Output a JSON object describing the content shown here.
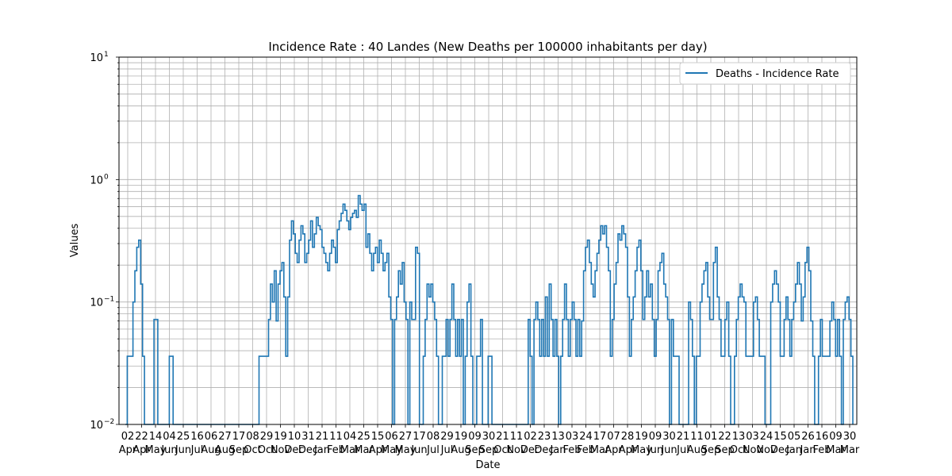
{
  "chart_data": {
    "type": "line",
    "title": "Incidence Rate : 40 Landes (New Deaths per 100000 inhabitants per day)",
    "xlabel": "Date",
    "ylabel": "Values",
    "yscale": "log",
    "ylim": [
      0.01,
      10
    ],
    "y_major_ticks": [
      {
        "value": 0.01,
        "label": "10",
        "exp": "−2"
      },
      {
        "value": 0.1,
        "label": "10",
        "exp": "−1"
      },
      {
        "value": 1,
        "label": "10",
        "exp": "0"
      },
      {
        "value": 10,
        "label": "10",
        "exp": "1"
      }
    ],
    "grid": true,
    "legend": {
      "position": "top-right",
      "entries": [
        "Deaths - Incidence Rate"
      ]
    },
    "line_color": "#1f77b4",
    "x_tick_labels": [
      [
        "02",
        "Apr"
      ],
      [
        "22",
        "Apr"
      ],
      [
        "14",
        "May"
      ],
      [
        "04",
        "Jun"
      ],
      [
        "25",
        "Jun"
      ],
      [
        "16",
        "Jul"
      ],
      [
        "06",
        "Aug"
      ],
      [
        "27",
        "Aug"
      ],
      [
        "17",
        "Sep"
      ],
      [
        "08",
        "Oct"
      ],
      [
        "29",
        "Oct"
      ],
      [
        "19",
        "Nov"
      ],
      [
        "10",
        "Dec"
      ],
      [
        "31",
        "Dec"
      ],
      [
        "21",
        "Jan"
      ],
      [
        "11",
        "Feb"
      ],
      [
        "04",
        "Mar"
      ],
      [
        "25",
        "Mar"
      ],
      [
        "15",
        "Apr"
      ],
      [
        "06",
        "May"
      ],
      [
        "27",
        "May"
      ],
      [
        "17",
        "Jun"
      ],
      [
        "08",
        "Jul"
      ],
      [
        "29",
        "Jul"
      ],
      [
        "19",
        "Aug"
      ],
      [
        "09",
        "Sep"
      ],
      [
        "30",
        "Sep"
      ],
      [
        "21",
        "Oct"
      ],
      [
        "11",
        "Nov"
      ],
      [
        "02",
        "Dec"
      ],
      [
        "23",
        "Dec"
      ],
      [
        "13",
        "Jan"
      ],
      [
        "03",
        "Feb"
      ],
      [
        "24",
        "Feb"
      ],
      [
        "17",
        "Mar"
      ],
      [
        "07",
        "Apr"
      ],
      [
        "28",
        "Apr"
      ],
      [
        "19",
        "May"
      ],
      [
        "09",
        "Jun"
      ],
      [
        "30",
        "Jun"
      ],
      [
        "21",
        "Jul"
      ],
      [
        "11",
        "Aug"
      ],
      [
        "01",
        "Sep"
      ],
      [
        "22",
        "Sep"
      ],
      [
        "13",
        "Oct"
      ],
      [
        "03",
        "Nov"
      ],
      [
        "24",
        "Nov"
      ],
      [
        "15",
        "Dec"
      ],
      [
        "05",
        "Jan"
      ],
      [
        "26",
        "Jan"
      ],
      [
        "16",
        "Feb"
      ],
      [
        "09",
        "Mar"
      ],
      [
        "30",
        "Mar"
      ]
    ],
    "series": [
      {
        "name": "Deaths - Incidence Rate",
        "values": [
          0.01,
          0.036,
          0.036,
          0.036,
          0.1,
          0.18,
          0.28,
          0.32,
          0.14,
          0.036,
          0.01,
          0.01,
          0.01,
          0.01,
          0.01,
          0.072,
          0.072,
          0.01,
          0.01,
          0.01,
          0.01,
          0.01,
          0.01,
          0.036,
          0.036,
          0.01,
          0.01,
          0.01,
          0.01,
          0.01,
          0.01,
          0.01,
          0.01,
          0.01,
          0.01,
          0.01,
          0.01,
          0.01,
          0.01,
          0.01,
          0.01,
          0.01,
          0.01,
          0.01,
          0.01,
          0.01,
          0.01,
          0.01,
          0.01,
          0.01,
          0.01,
          0.01,
          0.01,
          0.01,
          0.01,
          0.01,
          0.01,
          0.01,
          0.01,
          0.01,
          0.01,
          0.01,
          0.01,
          0.01,
          0.01,
          0.01,
          0.01,
          0.01,
          0.01,
          0.01,
          0.036,
          0.036,
          0.036,
          0.036,
          0.036,
          0.072,
          0.14,
          0.1,
          0.18,
          0.07,
          0.14,
          0.18,
          0.21,
          0.11,
          0.036,
          0.11,
          0.32,
          0.46,
          0.36,
          0.25,
          0.21,
          0.32,
          0.42,
          0.36,
          0.21,
          0.25,
          0.32,
          0.46,
          0.28,
          0.36,
          0.49,
          0.42,
          0.39,
          0.28,
          0.25,
          0.21,
          0.18,
          0.25,
          0.32,
          0.28,
          0.21,
          0.39,
          0.46,
          0.53,
          0.63,
          0.56,
          0.46,
          0.39,
          0.49,
          0.53,
          0.56,
          0.49,
          0.74,
          0.63,
          0.56,
          0.63,
          0.28,
          0.36,
          0.25,
          0.18,
          0.25,
          0.28,
          0.21,
          0.32,
          0.25,
          0.18,
          0.21,
          0.25,
          0.11,
          0.072,
          0.01,
          0.072,
          0.11,
          0.18,
          0.14,
          0.21,
          0.1,
          0.072,
          0.01,
          0.1,
          0.072,
          0.072,
          0.28,
          0.25,
          0.01,
          0.01,
          0.036,
          0.072,
          0.14,
          0.11,
          0.14,
          0.1,
          0.072,
          0.036,
          0.01,
          0.01,
          0.036,
          0.036,
          0.072,
          0.036,
          0.072,
          0.14,
          0.072,
          0.036,
          0.072,
          0.036,
          0.072,
          0.01,
          0.036,
          0.1,
          0.14,
          0.036,
          0.01,
          0.01,
          0.036,
          0.036,
          0.072,
          0.01,
          0.01,
          0.01,
          0.036,
          0.036,
          0.01,
          0.01,
          0.01,
          0.01,
          0.01,
          0.01,
          0.01,
          0.01,
          0.01,
          0.01,
          0.01,
          0.01,
          0.01,
          0.01,
          0.01,
          0.01,
          0.01,
          0.01,
          0.01,
          0.072,
          0.036,
          0.01,
          0.072,
          0.1,
          0.072,
          0.036,
          0.072,
          0.036,
          0.11,
          0.036,
          0.14,
          0.072,
          0.036,
          0.072,
          0.036,
          0.01,
          0.036,
          0.072,
          0.14,
          0.072,
          0.036,
          0.072,
          0.1,
          0.072,
          0.036,
          0.072,
          0.036,
          0.07,
          0.18,
          0.28,
          0.32,
          0.21,
          0.14,
          0.11,
          0.18,
          0.25,
          0.32,
          0.42,
          0.36,
          0.42,
          0.28,
          0.18,
          0.036,
          0.072,
          0.14,
          0.21,
          0.36,
          0.32,
          0.42,
          0.36,
          0.28,
          0.11,
          0.036,
          0.072,
          0.11,
          0.18,
          0.28,
          0.32,
          0.18,
          0.072,
          0.11,
          0.18,
          0.11,
          0.14,
          0.072,
          0.036,
          0.072,
          0.18,
          0.21,
          0.25,
          0.14,
          0.11,
          0.072,
          0.01,
          0.072,
          0.036,
          0.036,
          0.036,
          0.01,
          0.01,
          0.01,
          0.01,
          0.01,
          0.1,
          0.072,
          0.036,
          0.01,
          0.036,
          0.036,
          0.1,
          0.14,
          0.18,
          0.21,
          0.11,
          0.072,
          0.072,
          0.21,
          0.28,
          0.11,
          0.072,
          0.036,
          0.036,
          0.072,
          0.1,
          0.036,
          0.01,
          0.01,
          0.036,
          0.072,
          0.11,
          0.14,
          0.11,
          0.1,
          0.036,
          0.036,
          0.036,
          0.036,
          0.1,
          0.11,
          0.072,
          0.036,
          0.036,
          0.036,
          0.01,
          0.01,
          0.01,
          0.1,
          0.14,
          0.18,
          0.14,
          0.1,
          0.036,
          0.036,
          0.072,
          0.11,
          0.072,
          0.036,
          0.072,
          0.1,
          0.14,
          0.21,
          0.14,
          0.07,
          0.11,
          0.21,
          0.28,
          0.18,
          0.07,
          0.036,
          0.01,
          0.01,
          0.036,
          0.072,
          0.036,
          0.036,
          0.036,
          0.036,
          0.07,
          0.1,
          0.072,
          0.036,
          0.072,
          0.036,
          0.01,
          0.072,
          0.1,
          0.11,
          0.072,
          0.036,
          0.01
        ]
      }
    ]
  }
}
